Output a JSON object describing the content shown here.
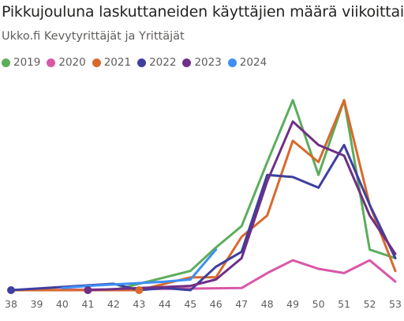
{
  "title": "Pikkujouluna laskuttaneiden käyttäjien määrä viikoittain",
  "subtitle": "Ukko.fi Kevytyrittäjät ja Yrittäjät",
  "chart_data": {
    "type": "line",
    "title": "Pikkujouluna laskuttaneiden käyttäjien määrä viikoittain",
    "subtitle": "Ukko.fi Kevytyrittäjät ja Yrittäjät",
    "xlabel": "",
    "ylabel": "",
    "x": [
      38,
      39,
      40,
      41,
      42,
      43,
      44,
      45,
      46,
      47,
      48,
      49,
      50,
      51,
      52,
      53
    ],
    "ylim": [
      0,
      100
    ],
    "grid": false,
    "legend_position": "top-left",
    "series": [
      {
        "name": "2019",
        "color": "#5cad5c",
        "points": [
          [
            40,
            0
          ],
          [
            41,
            0
          ],
          [
            42,
            0
          ],
          [
            45,
            9
          ],
          [
            46,
            20
          ],
          [
            47,
            30
          ],
          [
            48,
            60
          ],
          [
            49,
            89
          ],
          [
            50,
            54
          ],
          [
            51,
            89
          ],
          [
            52,
            19
          ],
          [
            53,
            15
          ]
        ]
      },
      {
        "name": "2020",
        "color": "#d957a8",
        "points": [
          [
            38,
            0
          ],
          [
            39,
            0
          ],
          [
            47,
            1
          ],
          [
            48,
            8
          ],
          [
            49,
            14
          ],
          [
            50,
            10
          ],
          [
            51,
            8
          ],
          [
            52,
            14
          ],
          [
            53,
            4
          ]
        ]
      },
      {
        "name": "2021",
        "color": "#d9692d",
        "points": [
          [
            38,
            0
          ],
          [
            39,
            0
          ],
          [
            40,
            0
          ],
          [
            43,
            0
          ],
          [
            45,
            6
          ],
          [
            46,
            6
          ],
          [
            47,
            25
          ],
          [
            48,
            35
          ],
          [
            49,
            70
          ],
          [
            50,
            60
          ],
          [
            51,
            89
          ],
          [
            52,
            40
          ],
          [
            53,
            9
          ]
        ]
      },
      {
        "name": "2022",
        "color": "#3e3f9e",
        "points": [
          [
            38,
            0
          ],
          [
            42,
            3
          ],
          [
            43,
            0
          ],
          [
            44,
            1
          ],
          [
            45,
            0
          ],
          [
            46,
            11
          ],
          [
            47,
            18
          ],
          [
            48,
            54
          ],
          [
            49,
            53
          ],
          [
            50,
            48
          ],
          [
            51,
            68
          ],
          [
            52,
            40
          ],
          [
            53,
            15
          ]
        ]
      },
      {
        "name": "2023",
        "color": "#6f2f86",
        "points": [
          [
            41,
            0
          ],
          [
            45,
            2
          ],
          [
            46,
            5
          ],
          [
            47,
            15
          ],
          [
            48,
            51
          ],
          [
            49,
            79
          ],
          [
            50,
            68
          ],
          [
            51,
            63
          ],
          [
            52,
            35
          ],
          [
            53,
            17
          ]
        ]
      },
      {
        "name": "2024",
        "color": "#3d8ff5",
        "points": [
          [
            40,
            1
          ],
          [
            41,
            2
          ],
          [
            44,
            4
          ],
          [
            45,
            5
          ],
          [
            46,
            19
          ]
        ]
      }
    ],
    "markers": [
      {
        "series": "2022",
        "x": 38,
        "y": 0
      },
      {
        "series": "2023",
        "x": 41,
        "y": 0
      },
      {
        "series": "2021",
        "x": 43,
        "y": 0
      }
    ]
  }
}
